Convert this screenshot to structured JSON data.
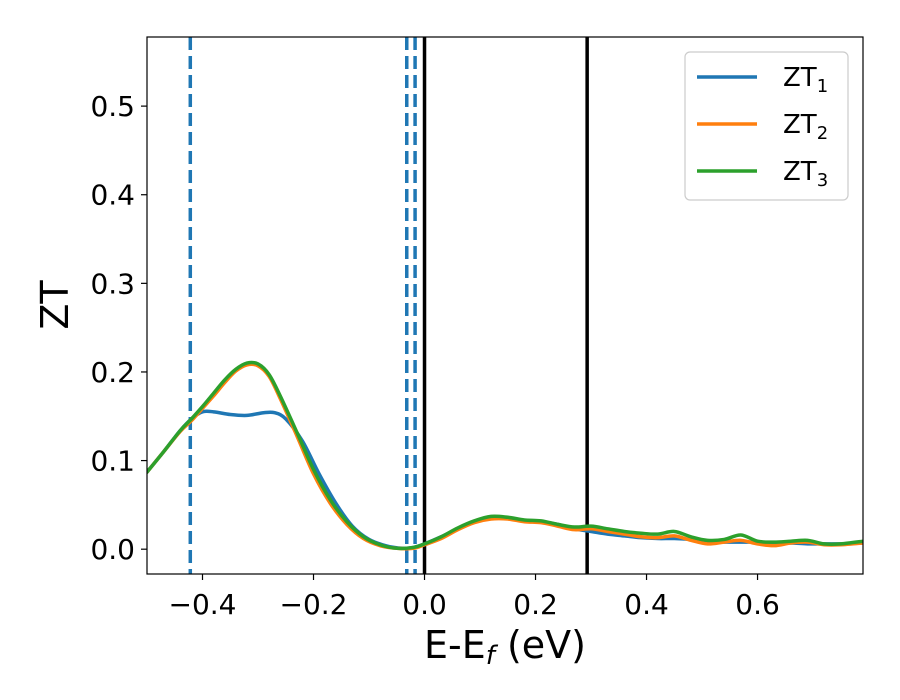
{
  "chart_data": {
    "type": "line",
    "xlabel": "E-E",
    "xlabel_sub": "f",
    "xlabel_unit": " (eV)",
    "ylabel": "ZT",
    "xlim": [
      -0.5,
      0.79
    ],
    "ylim": [
      -0.028,
      0.578
    ],
    "x_ticks": [
      -0.4,
      -0.2,
      0.0,
      0.2,
      0.4,
      0.6
    ],
    "x_tick_labels": [
      "−0.4",
      "−0.2",
      "0.0",
      "0.2",
      "0.4",
      "0.6"
    ],
    "y_ticks": [
      0.0,
      0.1,
      0.2,
      0.3,
      0.4,
      0.5
    ],
    "y_tick_labels": [
      "0.0",
      "0.1",
      "0.2",
      "0.3",
      "0.4",
      "0.5"
    ],
    "grid": false,
    "legend_position": "top-right",
    "series": [
      {
        "name": "ZT",
        "sub": "1",
        "color": "#1f77b4",
        "points": [
          [
            -0.5,
            0.087
          ],
          [
            -0.47,
            0.11
          ],
          [
            -0.44,
            0.134
          ],
          [
            -0.42,
            0.147
          ],
          [
            -0.4,
            0.155
          ],
          [
            -0.38,
            0.155
          ],
          [
            -0.35,
            0.152
          ],
          [
            -0.32,
            0.151
          ],
          [
            -0.29,
            0.154
          ],
          [
            -0.27,
            0.154
          ],
          [
            -0.25,
            0.147
          ],
          [
            -0.22,
            0.122
          ],
          [
            -0.19,
            0.085
          ],
          [
            -0.16,
            0.052
          ],
          [
            -0.13,
            0.026
          ],
          [
            -0.1,
            0.011
          ],
          [
            -0.07,
            0.004
          ],
          [
            -0.04,
            0.001
          ],
          [
            -0.02,
            0.002
          ],
          [
            0.0,
            0.006
          ],
          [
            0.03,
            0.014
          ],
          [
            0.06,
            0.023
          ],
          [
            0.09,
            0.031
          ],
          [
            0.12,
            0.036
          ],
          [
            0.15,
            0.035
          ],
          [
            0.18,
            0.032
          ],
          [
            0.21,
            0.031
          ],
          [
            0.24,
            0.028
          ],
          [
            0.27,
            0.023
          ],
          [
            0.3,
            0.02
          ],
          [
            0.33,
            0.017
          ],
          [
            0.36,
            0.015
          ],
          [
            0.39,
            0.013
          ],
          [
            0.42,
            0.012
          ],
          [
            0.45,
            0.012
          ],
          [
            0.48,
            0.011
          ],
          [
            0.51,
            0.009
          ],
          [
            0.54,
            0.008
          ],
          [
            0.57,
            0.008
          ],
          [
            0.6,
            0.008
          ],
          [
            0.63,
            0.007
          ],
          [
            0.66,
            0.007
          ],
          [
            0.69,
            0.006
          ],
          [
            0.72,
            0.006
          ],
          [
            0.75,
            0.006
          ],
          [
            0.79,
            0.007
          ]
        ]
      },
      {
        "name": "ZT",
        "sub": "2",
        "color": "#ff7f0e",
        "points": [
          [
            -0.5,
            0.087
          ],
          [
            -0.47,
            0.11
          ],
          [
            -0.44,
            0.133
          ],
          [
            -0.42,
            0.145
          ],
          [
            -0.4,
            0.159
          ],
          [
            -0.38,
            0.173
          ],
          [
            -0.36,
            0.188
          ],
          [
            -0.34,
            0.201
          ],
          [
            -0.32,
            0.208
          ],
          [
            -0.3,
            0.207
          ],
          [
            -0.28,
            0.195
          ],
          [
            -0.26,
            0.17
          ],
          [
            -0.23,
            0.128
          ],
          [
            -0.2,
            0.085
          ],
          [
            -0.17,
            0.052
          ],
          [
            -0.14,
            0.028
          ],
          [
            -0.11,
            0.012
          ],
          [
            -0.08,
            0.004
          ],
          [
            -0.05,
            0.001
          ],
          [
            -0.02,
            0.001
          ],
          [
            0.0,
            0.005
          ],
          [
            0.03,
            0.012
          ],
          [
            0.06,
            0.022
          ],
          [
            0.09,
            0.03
          ],
          [
            0.12,
            0.034
          ],
          [
            0.15,
            0.034
          ],
          [
            0.18,
            0.031
          ],
          [
            0.21,
            0.03
          ],
          [
            0.24,
            0.026
          ],
          [
            0.27,
            0.022
          ],
          [
            0.3,
            0.023
          ],
          [
            0.33,
            0.02
          ],
          [
            0.36,
            0.017
          ],
          [
            0.39,
            0.014
          ],
          [
            0.42,
            0.013
          ],
          [
            0.45,
            0.015
          ],
          [
            0.48,
            0.01
          ],
          [
            0.51,
            0.006
          ],
          [
            0.54,
            0.008
          ],
          [
            0.57,
            0.01
          ],
          [
            0.6,
            0.006
          ],
          [
            0.63,
            0.004
          ],
          [
            0.66,
            0.007
          ],
          [
            0.69,
            0.008
          ],
          [
            0.72,
            0.005
          ],
          [
            0.75,
            0.005
          ],
          [
            0.79,
            0.007
          ]
        ]
      },
      {
        "name": "ZT",
        "sub": "3",
        "color": "#2ca02c",
        "points": [
          [
            -0.5,
            0.087
          ],
          [
            -0.47,
            0.11
          ],
          [
            -0.44,
            0.134
          ],
          [
            -0.42,
            0.147
          ],
          [
            -0.4,
            0.161
          ],
          [
            -0.38,
            0.176
          ],
          [
            -0.36,
            0.191
          ],
          [
            -0.34,
            0.203
          ],
          [
            -0.32,
            0.21
          ],
          [
            -0.3,
            0.209
          ],
          [
            -0.28,
            0.197
          ],
          [
            -0.26,
            0.173
          ],
          [
            -0.23,
            0.132
          ],
          [
            -0.2,
            0.09
          ],
          [
            -0.17,
            0.056
          ],
          [
            -0.14,
            0.031
          ],
          [
            -0.11,
            0.014
          ],
          [
            -0.08,
            0.005
          ],
          [
            -0.05,
            0.001
          ],
          [
            -0.02,
            0.002
          ],
          [
            0.0,
            0.006
          ],
          [
            0.03,
            0.014
          ],
          [
            0.06,
            0.024
          ],
          [
            0.09,
            0.032
          ],
          [
            0.12,
            0.037
          ],
          [
            0.15,
            0.036
          ],
          [
            0.18,
            0.033
          ],
          [
            0.21,
            0.032
          ],
          [
            0.24,
            0.028
          ],
          [
            0.27,
            0.025
          ],
          [
            0.3,
            0.026
          ],
          [
            0.33,
            0.023
          ],
          [
            0.36,
            0.02
          ],
          [
            0.39,
            0.018
          ],
          [
            0.42,
            0.017
          ],
          [
            0.45,
            0.02
          ],
          [
            0.48,
            0.014
          ],
          [
            0.51,
            0.01
          ],
          [
            0.54,
            0.011
          ],
          [
            0.57,
            0.016
          ],
          [
            0.6,
            0.009
          ],
          [
            0.63,
            0.008
          ],
          [
            0.66,
            0.009
          ],
          [
            0.69,
            0.01
          ],
          [
            0.72,
            0.006
          ],
          [
            0.75,
            0.006
          ],
          [
            0.79,
            0.009
          ]
        ]
      }
    ],
    "vertical_lines": [
      {
        "x": -0.422,
        "style": "dashed",
        "color": "#1f77b4"
      },
      {
        "x": -0.032,
        "style": "dashed",
        "color": "#1f77b4"
      },
      {
        "x": -0.017,
        "style": "dashed",
        "color": "#1f77b4"
      },
      {
        "x": 0.0,
        "style": "solid",
        "color": "#000000"
      },
      {
        "x": 0.293,
        "style": "solid",
        "color": "#000000"
      }
    ]
  }
}
